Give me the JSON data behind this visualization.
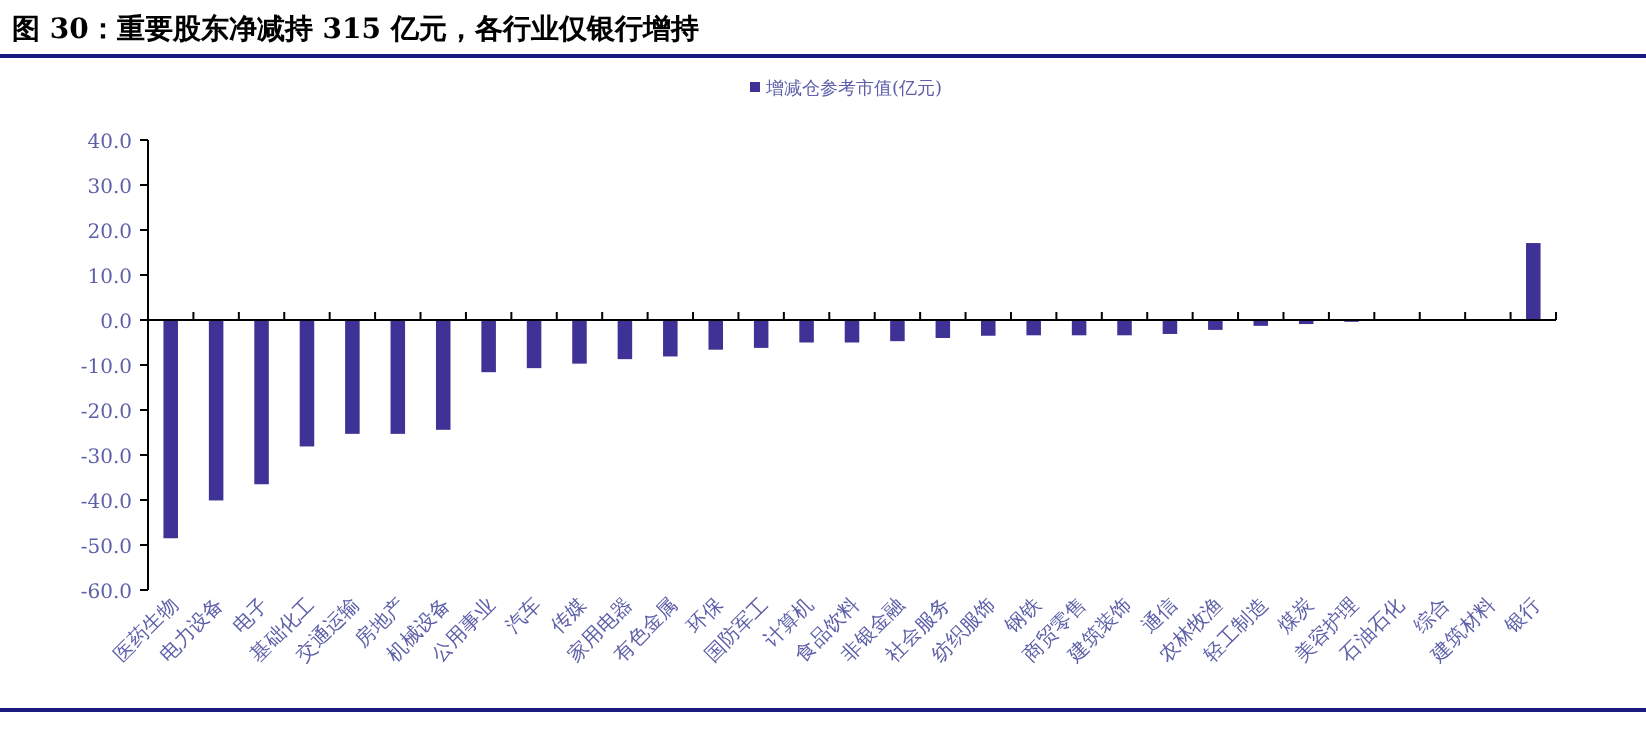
{
  "chart_data": {
    "type": "bar",
    "title": "图 30：重要股东净减持 315 亿元，各行业仅银行增持",
    "categories": [
      "医药生物",
      "电力设备",
      "电子",
      "基础化工",
      "交通运输",
      "房地产",
      "机械设备",
      "公用事业",
      "汽车",
      "传媒",
      "家用电器",
      "有色金属",
      "环保",
      "国防军工",
      "计算机",
      "食品饮料",
      "非银金融",
      "社会服务",
      "纺织服饰",
      "钢铁",
      "商贸零售",
      "建筑装饰",
      "通信",
      "农林牧渔",
      "轻工制造",
      "煤炭",
      "美容护理",
      "石油石化",
      "综合",
      "建筑材料",
      "银行"
    ],
    "series": [
      {
        "name": "增减仓参考市值(亿元)",
        "color": "#3f3296",
        "values": [
          -48.5,
          -40.1,
          -36.5,
          -28.1,
          -25.3,
          -25.3,
          -24.4,
          -11.6,
          -10.7,
          -9.7,
          -8.7,
          -8.1,
          -6.6,
          -6.2,
          -5.0,
          -5.0,
          -4.7,
          -4.0,
          -3.5,
          -3.4,
          -3.4,
          -3.4,
          -3.1,
          -2.2,
          -1.3,
          -0.9,
          -0.4,
          0,
          0,
          0,
          17.1
        ]
      }
    ],
    "ylim": [
      -60,
      40
    ],
    "yticks": [
      {
        "value": 40,
        "label": "40.0"
      },
      {
        "value": 30,
        "label": "30.0"
      },
      {
        "value": 20,
        "label": "20.0"
      },
      {
        "value": 10,
        "label": "10.0"
      },
      {
        "value": 0,
        "label": "0.0"
      },
      {
        "value": -10,
        "label": "-10.0"
      },
      {
        "value": -20,
        "label": "-20.0"
      },
      {
        "value": -30,
        "label": "-30.0"
      },
      {
        "value": -40,
        "label": "-40.0"
      },
      {
        "value": -50,
        "label": "-50.0"
      },
      {
        "value": -60,
        "label": "-60.0"
      }
    ],
    "legend": "top"
  }
}
